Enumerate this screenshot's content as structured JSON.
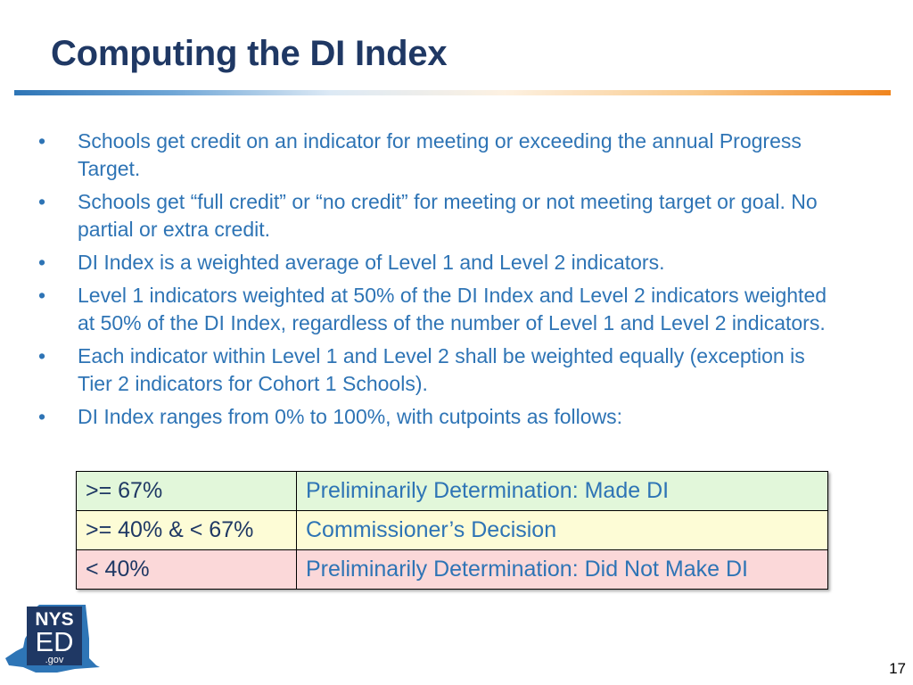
{
  "slide": {
    "title": "Computing the DI Index",
    "page_number": "17"
  },
  "bullets": [
    "Schools get credit on an indicator for meeting or exceeding the annual Progress Target.",
    "Schools get “full credit” or “no credit” for meeting or not meeting target or goal. No partial or extra credit.",
    "DI Index is a weighted average of Level 1 and Level 2 indicators.",
    "Level 1 indicators weighted at 50% of the DI Index and Level 2 indicators weighted at 50% of the DI Index, regardless of the number of Level 1 and Level 2 indicators.",
    "Each indicator within Level 1 and Level 2 shall be weighted equally (exception is Tier 2 indicators for Cohort 1 Schools).",
    "DI Index ranges from 0% to 100%, with cutpoints as follows:"
  ],
  "bullet_symbol": "•",
  "cutpoints": [
    {
      "range": ">= 67%",
      "determination": "Preliminarily Determination: Made DI",
      "color": "#e2f7da"
    },
    {
      "range": ">= 40% & < 67%",
      "determination": "Commissioner’s Decision",
      "color": "#fdfcd6"
    },
    {
      "range": "< 40%",
      "determination": "Preliminarily Determination: Did Not Make DI",
      "color": "#fbd8d9"
    }
  ],
  "logo": {
    "line1": "NYS",
    "line2": "ED",
    "line3": ".gov",
    "colors": {
      "state": "#2e75b6",
      "box": "#1f3864"
    }
  },
  "colors": {
    "title": "#1f3864",
    "body_text": "#2e74b5",
    "rule_start": "#2e75b6",
    "rule_end": "#f0851e"
  }
}
